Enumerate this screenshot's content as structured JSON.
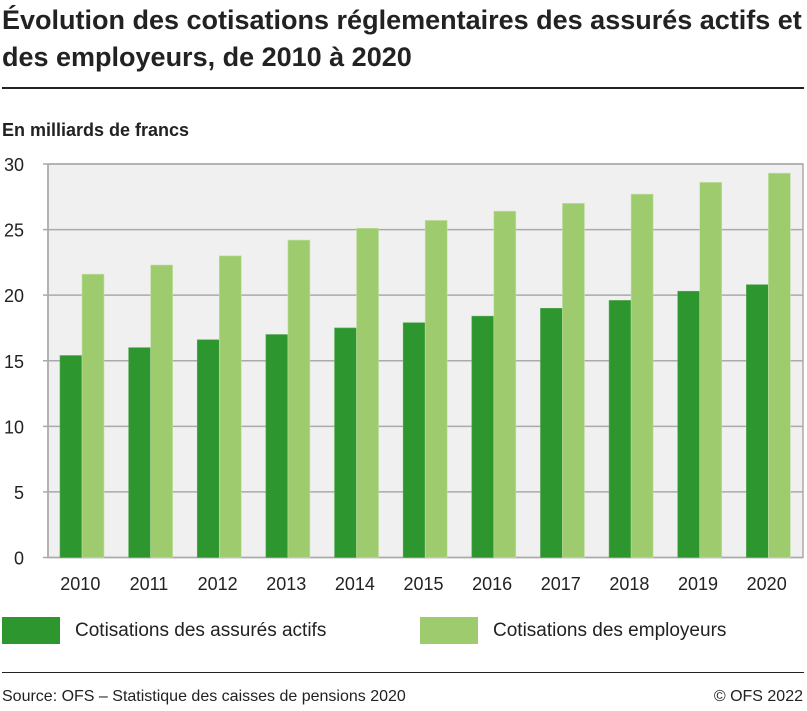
{
  "title": "Évolution des cotisations réglementaires des assurés actifs et des employeurs, de 2010 à 2020",
  "source": "Source: OFS – Statistique des caisses de pensions 2020",
  "copyright": "© OFS 2022",
  "chart_data": {
    "type": "bar",
    "title": "Évolution des cotisations réglementaires des assurés actifs et des employeurs, de 2010 à 2020",
    "ylabel": "En milliards de francs",
    "xlabel": "",
    "ylim": [
      0,
      30
    ],
    "yticks": [
      0,
      5,
      10,
      15,
      20,
      25,
      30
    ],
    "grid": true,
    "legend": "bottom",
    "categories": [
      "2010",
      "2011",
      "2012",
      "2013",
      "2014",
      "2015",
      "2016",
      "2017",
      "2018",
      "2019",
      "2020"
    ],
    "series": [
      {
        "name": "Cotisations des assurés actifs",
        "color": "#2e962e",
        "values": [
          15.4,
          16.0,
          16.6,
          17.0,
          17.5,
          17.9,
          18.4,
          19.0,
          19.6,
          20.3,
          20.8
        ]
      },
      {
        "name": "Cotisations des employeurs",
        "color": "#9ecb6d",
        "values": [
          21.6,
          22.3,
          23.0,
          24.2,
          25.1,
          25.7,
          26.4,
          27.0,
          27.7,
          28.6,
          29.3
        ]
      }
    ]
  }
}
